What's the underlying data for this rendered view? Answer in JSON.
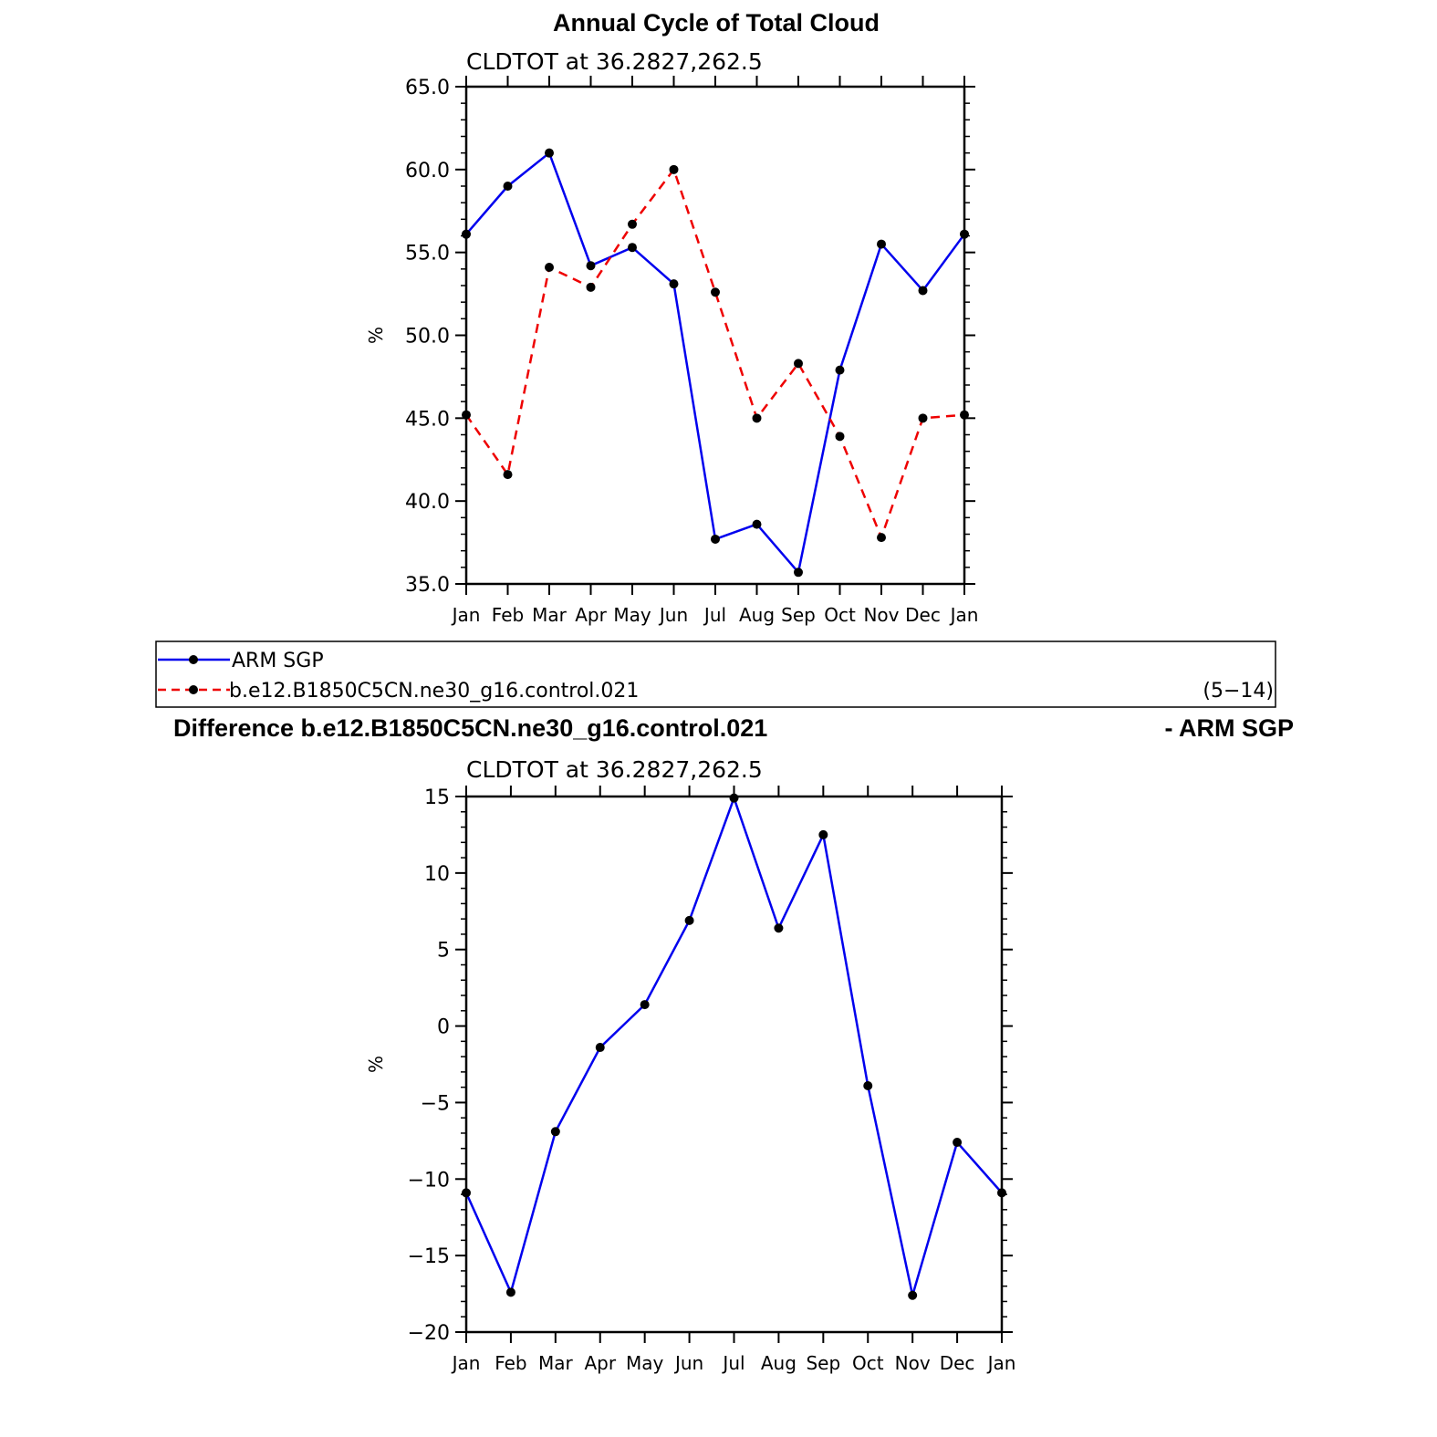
{
  "chart_data": [
    {
      "type": "line",
      "title": "Annual Cycle of Total Cloud",
      "subtitle": "CLDTOT at 36.2827,262.5",
      "xlabel": "",
      "ylabel": "%",
      "categories": [
        "Jan",
        "Feb",
        "Mar",
        "Apr",
        "May",
        "Jun",
        "Jul",
        "Aug",
        "Sep",
        "Oct",
        "Nov",
        "Dec",
        "Jan"
      ],
      "ylim": [
        35,
        65
      ],
      "yticks": [
        "35.0",
        "40.0",
        "45.0",
        "50.0",
        "55.0",
        "60.0",
        "65.0"
      ],
      "series": [
        {
          "name": "ARM SGP",
          "color": "#0000ee",
          "dash": "solid",
          "values": [
            56.1,
            59.0,
            61.0,
            54.2,
            55.3,
            53.1,
            37.7,
            38.6,
            35.7,
            47.9,
            55.5,
            52.7,
            56.1
          ]
        },
        {
          "name": "b.e12.B1850C5CN.ne30_g16.control.021",
          "color": "#ee0000",
          "dash": "dashed",
          "values": [
            45.2,
            41.6,
            54.1,
            52.9,
            56.7,
            60.0,
            52.6,
            45.0,
            48.3,
            43.9,
            37.8,
            45.0,
            45.2
          ]
        }
      ],
      "grid": false
    },
    {
      "type": "line",
      "title": "Difference b.e12.B1850C5CN.ne30_g16.control.021",
      "title_right": "- ARM SGP",
      "subtitle": "CLDTOT at 36.2827,262.5",
      "xlabel": "",
      "ylabel": "%",
      "categories": [
        "Jan",
        "Feb",
        "Mar",
        "Apr",
        "May",
        "Jun",
        "Jul",
        "Aug",
        "Sep",
        "Oct",
        "Nov",
        "Dec",
        "Jan"
      ],
      "ylim": [
        -20,
        15
      ],
      "yticks": [
        "−20",
        "−15",
        "−10",
        "−5",
        "0",
        "5",
        "10",
        "15"
      ],
      "series": [
        {
          "color": "#0000ee",
          "dash": "solid",
          "values": [
            -10.9,
            -17.4,
            -6.9,
            -1.4,
            1.4,
            6.9,
            14.9,
            6.4,
            12.5,
            -3.9,
            -17.6,
            -7.6,
            -10.9
          ]
        }
      ],
      "grid": false
    }
  ],
  "legend": {
    "items": [
      "ARM SGP",
      "b.e12.B1850C5CN.ne30_g16.control.021"
    ],
    "note": "(5−14)"
  }
}
